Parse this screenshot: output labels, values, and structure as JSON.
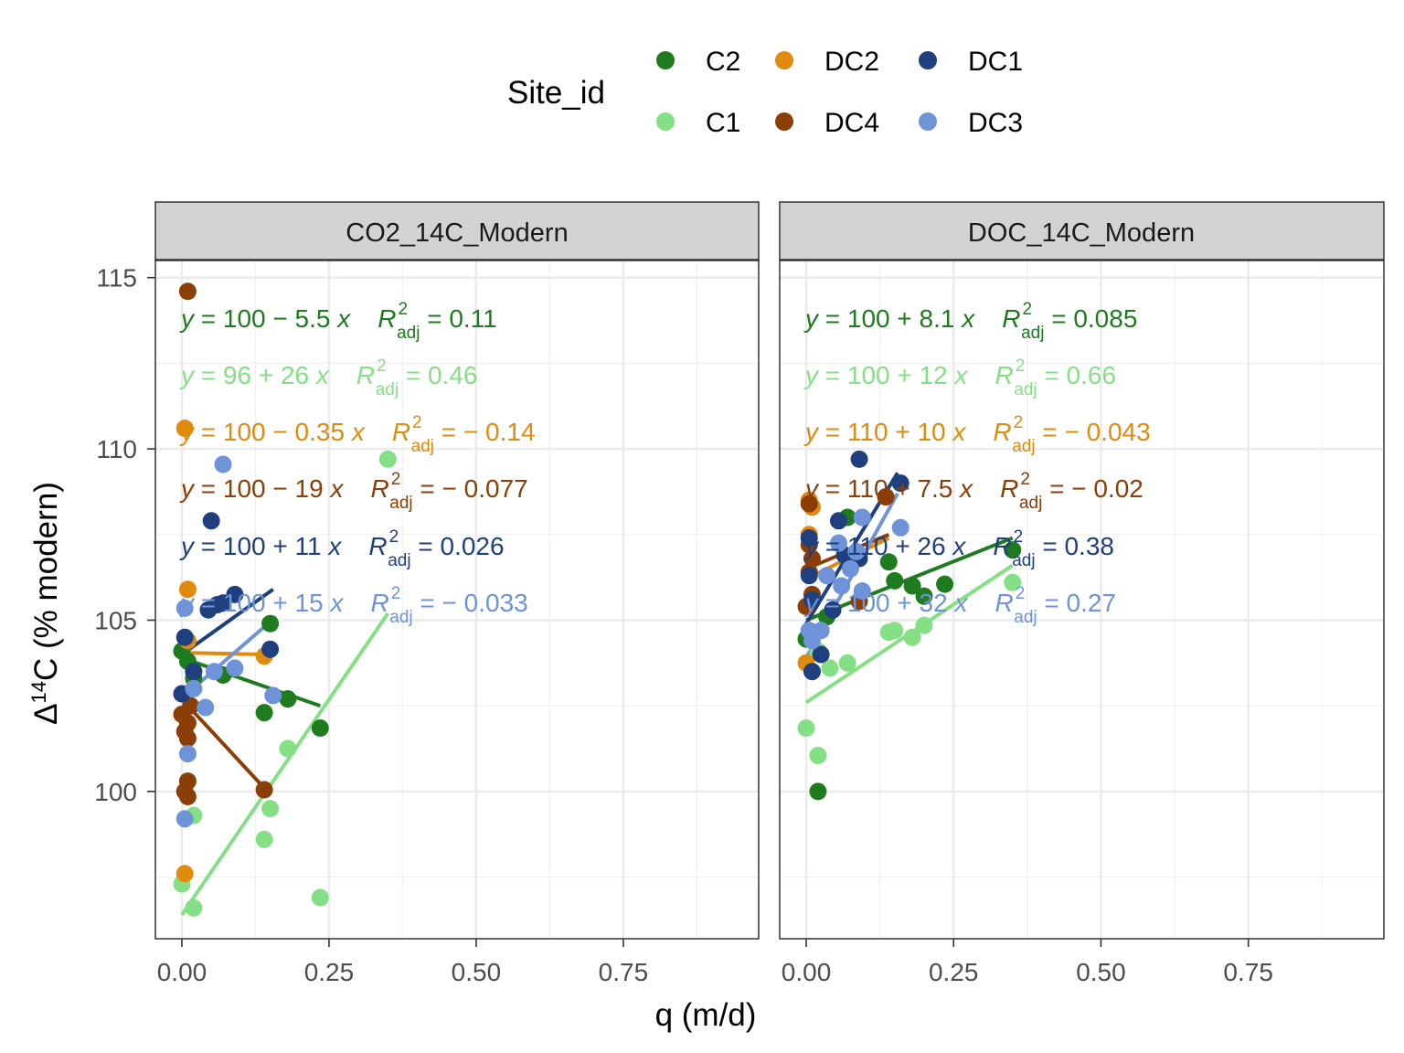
{
  "chart_data": {
    "type": "scatter",
    "x_label": "q (m/d)",
    "y_label_parts": {
      "delta": "Δ",
      "sup": "14",
      "rest": "C (% modern)"
    },
    "x_ticks": [
      0.0,
      0.25,
      0.5,
      0.75
    ],
    "x_tick_labels": [
      "0.00",
      "0.25",
      "0.50",
      "0.75"
    ],
    "y_ticks": [
      100,
      105,
      110,
      115
    ],
    "y_tick_labels": [
      "100",
      "105",
      "110",
      "115"
    ],
    "xlim": [
      -0.045,
      0.98
    ],
    "ylim": [
      95.7,
      115.5
    ],
    "legend": {
      "title": "Site_id",
      "position": "top",
      "entries": [
        {
          "id": "C2",
          "label": "C2"
        },
        {
          "id": "DC2",
          "label": "DC2"
        },
        {
          "id": "DC1",
          "label": "DC1"
        },
        {
          "id": "C1",
          "label": "C1"
        },
        {
          "id": "DC4",
          "label": "DC4"
        },
        {
          "id": "DC3",
          "label": "DC3"
        }
      ]
    },
    "colors": {
      "C2": "#1e7b1e",
      "C1": "#85e085",
      "DC2": "#e08b0e",
      "DC4": "#8b3e08",
      "DC1": "#1f3f7f",
      "DC3": "#6f93d8"
    },
    "panels": [
      {
        "title": "CO2_14C_Modern",
        "series": [
          {
            "id": "C2",
            "points": [
              [
                0,
                104.1
              ],
              [
                0.01,
                103.8
              ],
              [
                0.02,
                103.3
              ],
              [
                0.07,
                103.4
              ],
              [
                0.14,
                102.3
              ],
              [
                0.15,
                104.9
              ],
              [
                0.18,
                102.7
              ],
              [
                0.235,
                101.85
              ]
            ],
            "fit": [
              [
                0,
                103.9
              ],
              [
                0.235,
                102.5
              ]
            ],
            "eq_parts": {
              "y": "y",
              "rhs": " = 100 − 5.5 ",
              "x": "x",
              "r": "R",
              "sup": "2",
              "sub": "adj",
              "val": " = 0.11"
            }
          },
          {
            "id": "C1",
            "points": [
              [
                0,
                97.3
              ],
              [
                0.02,
                99.3
              ],
              [
                0.02,
                96.6
              ],
              [
                0.14,
                98.6
              ],
              [
                0.15,
                99.5
              ],
              [
                0.18,
                101.25
              ],
              [
                0.235,
                96.9
              ],
              [
                0.35,
                109.7
              ]
            ],
            "fit": [
              [
                0,
                96.4
              ],
              [
                0.35,
                105.2
              ]
            ],
            "eq_parts": {
              "y": "y",
              "rhs": " = 96 + 26 ",
              "x": "x",
              "r": "R",
              "sup": "2",
              "sub": "adj",
              "val": " = 0.46"
            }
          },
          {
            "id": "DC2",
            "points": [
              [
                0.005,
                110.6
              ],
              [
                0.01,
                105.9
              ],
              [
                0.01,
                104.4
              ],
              [
                0.14,
                103.95
              ],
              [
                0.005,
                97.6
              ]
            ],
            "fit": [
              [
                0.005,
                104.05
              ],
              [
                0.14,
                104.0
              ]
            ],
            "eq_parts": {
              "y": "y",
              "rhs": " = 100 − 0.35 ",
              "x": "x",
              "r": "R",
              "sup": "2",
              "sub": "adj",
              "val": " = − 0.14"
            }
          },
          {
            "id": "DC4",
            "points": [
              [
                0.01,
                114.6
              ],
              [
                0.0,
                102.25
              ],
              [
                0.005,
                101.75
              ],
              [
                0.01,
                101.55
              ],
              [
                0.01,
                102.0
              ],
              [
                0.015,
                102.5
              ],
              [
                0.01,
                100.3
              ],
              [
                0.005,
                100.0
              ],
              [
                0.01,
                99.85
              ],
              [
                0.14,
                100.05
              ]
            ],
            "fit": [
              [
                0.005,
                102.6
              ],
              [
                0.14,
                100.1
              ]
            ],
            "eq_parts": {
              "y": "y",
              "rhs": " = 100 − 19 ",
              "x": "x",
              "r": "R",
              "sup": "2",
              "sub": "adj",
              "val": " = − 0.077"
            }
          },
          {
            "id": "DC1",
            "points": [
              [
                0.005,
                104.5
              ],
              [
                0.0,
                102.85
              ],
              [
                0.02,
                103.5
              ],
              [
                0.045,
                105.3
              ],
              [
                0.05,
                107.9
              ],
              [
                0.06,
                105.45
              ],
              [
                0.07,
                105.5
              ],
              [
                0.09,
                105.75
              ],
              [
                0.15,
                104.15
              ]
            ],
            "fit": [
              [
                0,
                104.0
              ],
              [
                0.155,
                105.9
              ]
            ],
            "eq_parts": {
              "y": "y",
              "rhs": " = 100 + 11 ",
              "x": "x",
              "r": "R",
              "sup": "2",
              "sub": "adj",
              "val": " = 0.026"
            }
          },
          {
            "id": "DC3",
            "points": [
              [
                0.005,
                105.35
              ],
              [
                0.005,
                99.2
              ],
              [
                0.01,
                101.1
              ],
              [
                0.02,
                103.0
              ],
              [
                0.04,
                102.45
              ],
              [
                0.055,
                103.5
              ],
              [
                0.07,
                109.55
              ],
              [
                0.09,
                103.6
              ],
              [
                0.155,
                102.8
              ]
            ],
            "fit": [
              [
                0.005,
                102.8
              ],
              [
                0.16,
                105.1
              ]
            ],
            "eq_parts": {
              "y": "y",
              "rhs": " = 100 + 15 ",
              "x": "x",
              "r": "R",
              "sup": "2",
              "sub": "adj",
              "val": " = − 0.033"
            }
          }
        ]
      },
      {
        "title": "DOC_14C_Modern",
        "series": [
          {
            "id": "C2",
            "points": [
              [
                0.0,
                104.45
              ],
              [
                0.02,
                100.0
              ],
              [
                0.035,
                105.1
              ],
              [
                0.07,
                108.0
              ],
              [
                0.14,
                106.7
              ],
              [
                0.15,
                106.15
              ],
              [
                0.18,
                106.0
              ],
              [
                0.2,
                105.7
              ],
              [
                0.235,
                106.05
              ],
              [
                0.35,
                107.05
              ]
            ],
            "fit": [
              [
                0,
                105.0
              ],
              [
                0.35,
                107.4
              ]
            ],
            "eq_parts": {
              "y": "y",
              "rhs": " = 100 + 8.1 ",
              "x": "x",
              "r": "R",
              "sup": "2",
              "sub": "adj",
              "val": " = 0.085"
            }
          },
          {
            "id": "C1",
            "points": [
              [
                0.0,
                101.85
              ],
              [
                0.02,
                101.05
              ],
              [
                0.02,
                104.1
              ],
              [
                0.04,
                103.6
              ],
              [
                0.07,
                103.75
              ],
              [
                0.14,
                104.65
              ],
              [
                0.15,
                104.7
              ],
              [
                0.18,
                104.5
              ],
              [
                0.2,
                104.85
              ],
              [
                0.35,
                106.1
              ]
            ],
            "fit": [
              [
                0,
                102.6
              ],
              [
                0.35,
                106.6
              ]
            ],
            "eq_parts": {
              "y": "y",
              "rhs": " = 100 + 12 ",
              "x": "x",
              "r": "R",
              "sup": "2",
              "sub": "adj",
              "val": " = 0.66"
            }
          },
          {
            "id": "DC2",
            "points": [
              [
                0.005,
                108.5
              ],
              [
                0.01,
                108.3
              ],
              [
                0.005,
                107.5
              ],
              [
                0.0,
                103.75
              ]
            ],
            "fit": [
              [
                0,
                106.2
              ],
              [
                0.14,
                107.4
              ]
            ],
            "eq_parts": {
              "y": "y",
              "rhs": " = 110 + 10 ",
              "x": "x",
              "r": "R",
              "sup": "2",
              "sub": "adj",
              "val": " = − 0.043"
            }
          },
          {
            "id": "DC4",
            "points": [
              [
                0.005,
                108.4
              ],
              [
                0.005,
                107.2
              ],
              [
                0.01,
                106.8
              ],
              [
                0.005,
                106.4
              ],
              [
                0.01,
                105.75
              ],
              [
                0.0,
                105.4
              ],
              [
                0.09,
                105.55
              ],
              [
                0.135,
                108.6
              ]
            ],
            "fit": [
              [
                0,
                106.5
              ],
              [
                0.14,
                107.5
              ]
            ],
            "eq_parts": {
              "y": "y",
              "rhs": " = 110 + 7.5 ",
              "x": "x",
              "r": "R",
              "sup": "2",
              "sub": "adj",
              "val": " = − 0.02"
            }
          },
          {
            "id": "DC1",
            "points": [
              [
                0.005,
                107.4
              ],
              [
                0.005,
                106.3
              ],
              [
                0.01,
                105.6
              ],
              [
                0.01,
                103.5
              ],
              [
                0.025,
                104.0
              ],
              [
                0.045,
                105.3
              ],
              [
                0.055,
                107.9
              ],
              [
                0.065,
                106.9
              ],
              [
                0.09,
                106.8
              ],
              [
                0.09,
                109.7
              ],
              [
                0.16,
                109.0
              ]
            ],
            "fit": [
              [
                0,
                104.9
              ],
              [
                0.155,
                109.3
              ]
            ],
            "eq_parts": {
              "y": "y",
              "rhs": " = 110 + 26 ",
              "x": "x",
              "r": "R",
              "sup": "2",
              "sub": "adj",
              "val": " = 0.38"
            }
          },
          {
            "id": "DC3",
            "points": [
              [
                0.005,
                104.7
              ],
              [
                0.01,
                104.4
              ],
              [
                0.025,
                104.7
              ],
              [
                0.035,
                106.3
              ],
              [
                0.055,
                107.25
              ],
              [
                0.06,
                106.0
              ],
              [
                0.075,
                106.5
              ],
              [
                0.085,
                107.0
              ],
              [
                0.095,
                108.0
              ],
              [
                0.095,
                105.85
              ],
              [
                0.16,
                107.7
              ]
            ],
            "fit": [
              [
                0,
                103.9
              ],
              [
                0.155,
                108.7
              ]
            ],
            "eq_parts": {
              "y": "y",
              "rhs": " = 100 + 32 ",
              "x": "x",
              "r": "R",
              "sup": "2",
              "sub": "adj",
              "val": " = 0.27"
            }
          }
        ]
      }
    ]
  }
}
